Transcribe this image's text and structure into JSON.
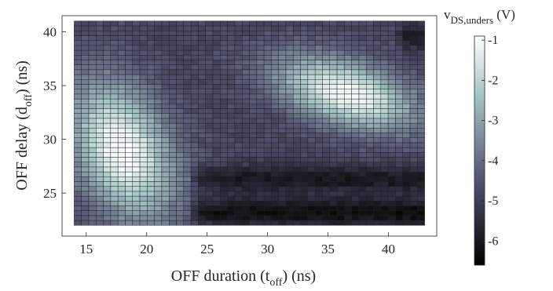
{
  "chart_data": {
    "type": "heatmap",
    "title": "",
    "xlabel": {
      "main": "OFF duration (t",
      "sub": "off",
      "tail": ") (ns)"
    },
    "ylabel": {
      "main": "OFF delay (d",
      "sub": "off",
      "tail": ") (ns)"
    },
    "xlim": [
      13,
      44
    ],
    "ylim": [
      21,
      41.5
    ],
    "x_range": [
      14,
      43
    ],
    "y_range": [
      22,
      41
    ],
    "cell_count": {
      "x": 48,
      "y": 42
    },
    "x_ticks": [
      15,
      20,
      25,
      30,
      35,
      40
    ],
    "y_ticks": [
      25,
      30,
      35,
      40
    ],
    "colormap": "bone",
    "colorbar": {
      "title": {
        "main": "v",
        "sub": "DS,unders",
        "tail": " (V)"
      },
      "range": [
        -6.6,
        -0.9
      ],
      "ticks": [
        -1,
        -2,
        -3,
        -4,
        -5,
        -6
      ]
    },
    "description_model": {
      "base_level": -4.8,
      "lobes": [
        {
          "center_x": 18.0,
          "center_y": 29.0,
          "peak": -0.9,
          "sigma_x": 3.0,
          "sigma_y": 4.5,
          "correlation": -0.35
        },
        {
          "center_x": 36.5,
          "center_y": 34.3,
          "peak": -0.95,
          "sigma_x": 4.0,
          "sigma_y": 2.4,
          "correlation": -0.45
        }
      ],
      "dark_bands": [
        {
          "x_from": 23.5,
          "x_to": 43,
          "y_center": 26.3,
          "depth": -1.2
        },
        {
          "x_from": 23.5,
          "x_to": 43,
          "y_center": 23.2,
          "depth": -1.5
        },
        {
          "x_from": 40.5,
          "x_to": 43,
          "y_center": 39.5,
          "depth": -1.0
        }
      ]
    }
  }
}
